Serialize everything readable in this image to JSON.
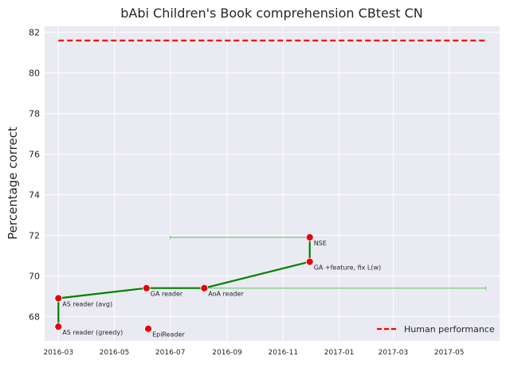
{
  "chart_data": {
    "type": "line",
    "title": "bAbi Children's Book comprehension CBtest CN",
    "xlabel": "",
    "ylabel": "Percentage correct",
    "x_axis": "date",
    "xlim": [
      "2016-02-15",
      "2017-06-25"
    ],
    "ylim": [
      66.8,
      82.3
    ],
    "x_ticks": [
      "2016-03",
      "2016-05",
      "2016-07",
      "2016-09",
      "2016-11",
      "2017-01",
      "2017-03",
      "2017-05"
    ],
    "y_ticks": [
      68,
      70,
      72,
      74,
      76,
      78,
      80,
      82
    ],
    "grid": true,
    "legend_placement": "lower-right",
    "human_performance": {
      "name": "Human performance",
      "value": 81.6,
      "x_start": "2016-03-01",
      "x_end": "2017-06-10",
      "color": "#ff0000"
    },
    "frontier": {
      "color": "#008000",
      "x": [
        "2016-03-01",
        "2016-03-01",
        "2016-06-05",
        "2016-08-07",
        "2016-11-30",
        "2016-11-30"
      ],
      "y": [
        67.5,
        68.9,
        69.4,
        69.4,
        70.7,
        71.9
      ]
    },
    "points": [
      {
        "label": "AS reader (greedy)",
        "x": "2016-03-01",
        "y": 67.5
      },
      {
        "label": "AS reader (avg)",
        "x": "2016-03-01",
        "y": 68.9
      },
      {
        "label": "GA reader",
        "x": "2016-06-05",
        "y": 69.4
      },
      {
        "label": "EpiReader",
        "x": "2016-06-07",
        "y": 67.4
      },
      {
        "label": "AoA reader",
        "x": "2016-08-07",
        "y": 69.4
      },
      {
        "label": "GA +feature, fix L(w)",
        "x": "2016-11-30",
        "y": 70.7
      },
      {
        "label": "NSE",
        "x": "2016-11-30",
        "y": 71.9
      }
    ],
    "point_color": "#e8000b",
    "error_bars": [
      {
        "y": 71.9,
        "x_start": "2016-07-01",
        "x_end": "2016-11-30"
      },
      {
        "y": 69.4,
        "x_start": "2016-08-07",
        "x_end": "2017-06-10"
      }
    ],
    "error_bar_color": "#7fc87f"
  }
}
